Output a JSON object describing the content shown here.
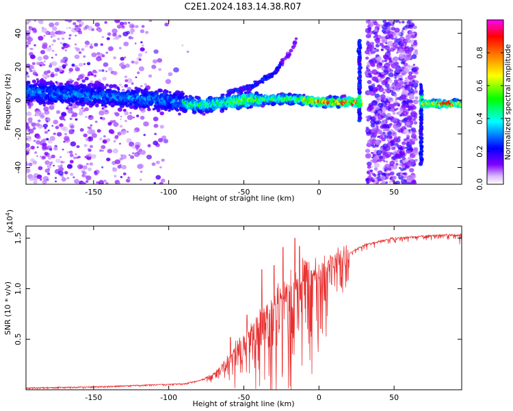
{
  "title": "C2E1.2024.183.14.38.R07",
  "chart_data": [
    {
      "type": "heatmap",
      "xlabel": "Height of straight line (km)",
      "ylabel": "Frequency (Hz)",
      "xlim": [
        -195,
        95
      ],
      "ylim": [
        -50,
        48
      ],
      "xticks": [
        -150,
        -100,
        -50,
        0,
        50
      ],
      "xtick_labels": [
        "-150",
        "-100",
        "-50",
        "0",
        "50"
      ],
      "yticks": [
        -40,
        -20,
        0,
        20,
        40
      ],
      "ytick_labels": [
        "-40",
        "-20",
        "0",
        "20",
        "40"
      ],
      "colorbar": {
        "label": "Normalized spectral amplitude",
        "range": [
          0,
          1
        ],
        "ticks": [
          0.0,
          0.2,
          0.4,
          0.6,
          0.8
        ],
        "tick_labels": [
          "0.0",
          "0.2",
          "0.4",
          "0.6",
          "0.8"
        ],
        "colors": [
          "#ffffff",
          "#8000ff",
          "#0000ff",
          "#00ffff",
          "#00ff00",
          "#ffff00",
          "#ff8000",
          "#ff0000",
          "#ff00ff"
        ]
      },
      "features": {
        "main_band": [
          [
            -195,
            5
          ],
          [
            -150,
            3
          ],
          [
            -100,
            0
          ],
          [
            -80,
            -3
          ],
          [
            -50,
            0
          ],
          [
            -20,
            1
          ],
          [
            0,
            -1
          ],
          [
            25,
            -1
          ]
        ],
        "upper_branch": [
          [
            -60,
            5
          ],
          [
            -45,
            8
          ],
          [
            -30,
            16
          ],
          [
            -20,
            28
          ],
          [
            -15,
            36
          ]
        ],
        "noise_region_1": [
          -195,
          -95
        ],
        "noise_region_2": [
          32,
          65
        ],
        "spikes": [
          27,
          68
        ],
        "band_after_spike": [
          [
            70,
            -2
          ],
          [
            95,
            -2
          ]
        ]
      }
    },
    {
      "type": "line",
      "xlabel": "Height of straight line (km)",
      "ylabel": "SNR (10 * v/v)",
      "scale_label": "(x10",
      "scale_exponent": "4",
      "xlim": [
        -195,
        95
      ],
      "ylim": [
        0,
        16200
      ],
      "xticks": [
        -150,
        -100,
        -50,
        0,
        50
      ],
      "xtick_labels": [
        "-150",
        "-100",
        "-50",
        "0",
        "50"
      ],
      "yticks": [
        5000,
        10000,
        15000
      ],
      "ytick_labels": [
        "0.5",
        "1.0",
        "1.5"
      ],
      "series": [
        {
          "color": "#e83030",
          "envelope": [
            [
              -195,
              200
            ],
            [
              -150,
              300
            ],
            [
              -110,
              500
            ],
            [
              -90,
              600
            ],
            [
              -80,
              900
            ],
            [
              -70,
              1500
            ],
            [
              -60,
              3000
            ],
            [
              -50,
              5000
            ],
            [
              -40,
              6500
            ],
            [
              -30,
              8000
            ],
            [
              -20,
              9500
            ],
            [
              -10,
              10500
            ],
            [
              0,
              11500
            ],
            [
              10,
              12500
            ],
            [
              20,
              13500
            ],
            [
              30,
              14300
            ],
            [
              40,
              14700
            ],
            [
              50,
              15000
            ],
            [
              60,
              15100
            ],
            [
              70,
              15200
            ],
            [
              80,
              15300
            ],
            [
              95,
              15300
            ]
          ],
          "peaks": [
            [
              -59,
              5200
            ],
            [
              -48,
              7400
            ],
            [
              -38,
              11900
            ],
            [
              -30,
              12300
            ],
            [
              -24,
              14100
            ],
            [
              -16,
              15000
            ],
            [
              -13,
              14200
            ],
            [
              -8,
              12600
            ],
            [
              -2,
              11400
            ],
            [
              5,
              11600
            ],
            [
              10,
              12200
            ]
          ]
        }
      ]
    }
  ]
}
